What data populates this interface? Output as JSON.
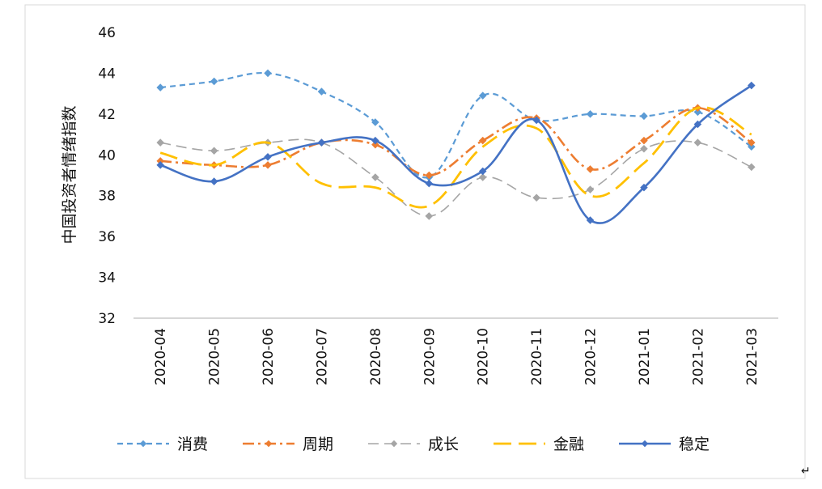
{
  "chart_data": {
    "type": "line",
    "title": "",
    "xlabel": "",
    "ylabel": "中国投资者情绪指数",
    "ylim": [
      32,
      46
    ],
    "yticks": [
      32,
      34,
      36,
      38,
      40,
      42,
      44,
      46
    ],
    "grid": false,
    "legend_position": "bottom",
    "categories": [
      "2020-04",
      "2020-05",
      "2020-06",
      "2020-07",
      "2020-08",
      "2020-09",
      "2020-10",
      "2020-11",
      "2020-12",
      "2021-01",
      "2021-02",
      "2021-03"
    ],
    "series": [
      {
        "name": "消费",
        "color": "#5B9BD5",
        "dash": "short-dash",
        "marker": "diamond",
        "values": [
          43.3,
          43.6,
          44.0,
          43.1,
          41.6,
          38.9,
          42.9,
          41.7,
          42.0,
          41.9,
          42.1,
          40.4
        ]
      },
      {
        "name": "周期",
        "color": "#ED7D31",
        "dash": "dash-dot",
        "marker": "diamond",
        "values": [
          39.7,
          39.5,
          39.5,
          40.6,
          40.5,
          39.0,
          40.7,
          41.8,
          39.3,
          40.7,
          42.3,
          40.6
        ]
      },
      {
        "name": "成长",
        "color": "#A5A5A5",
        "dash": "long-dash",
        "marker": "diamond",
        "values": [
          40.6,
          40.2,
          40.6,
          40.6,
          38.9,
          37.0,
          38.9,
          37.9,
          38.3,
          40.3,
          40.6,
          39.4
        ]
      },
      {
        "name": "金融",
        "color": "#FFC000",
        "dash": "long-dash-bold",
        "marker": "none",
        "values": [
          40.1,
          39.5,
          40.6,
          38.6,
          38.4,
          37.5,
          40.4,
          41.3,
          38.0,
          39.6,
          42.3,
          41.0
        ]
      },
      {
        "name": "稳定",
        "color": "#4472C4",
        "dash": "solid",
        "marker": "diamond",
        "values": [
          39.5,
          38.7,
          39.9,
          40.6,
          40.7,
          38.6,
          39.2,
          41.7,
          36.8,
          38.4,
          41.5,
          43.4
        ]
      }
    ]
  }
}
